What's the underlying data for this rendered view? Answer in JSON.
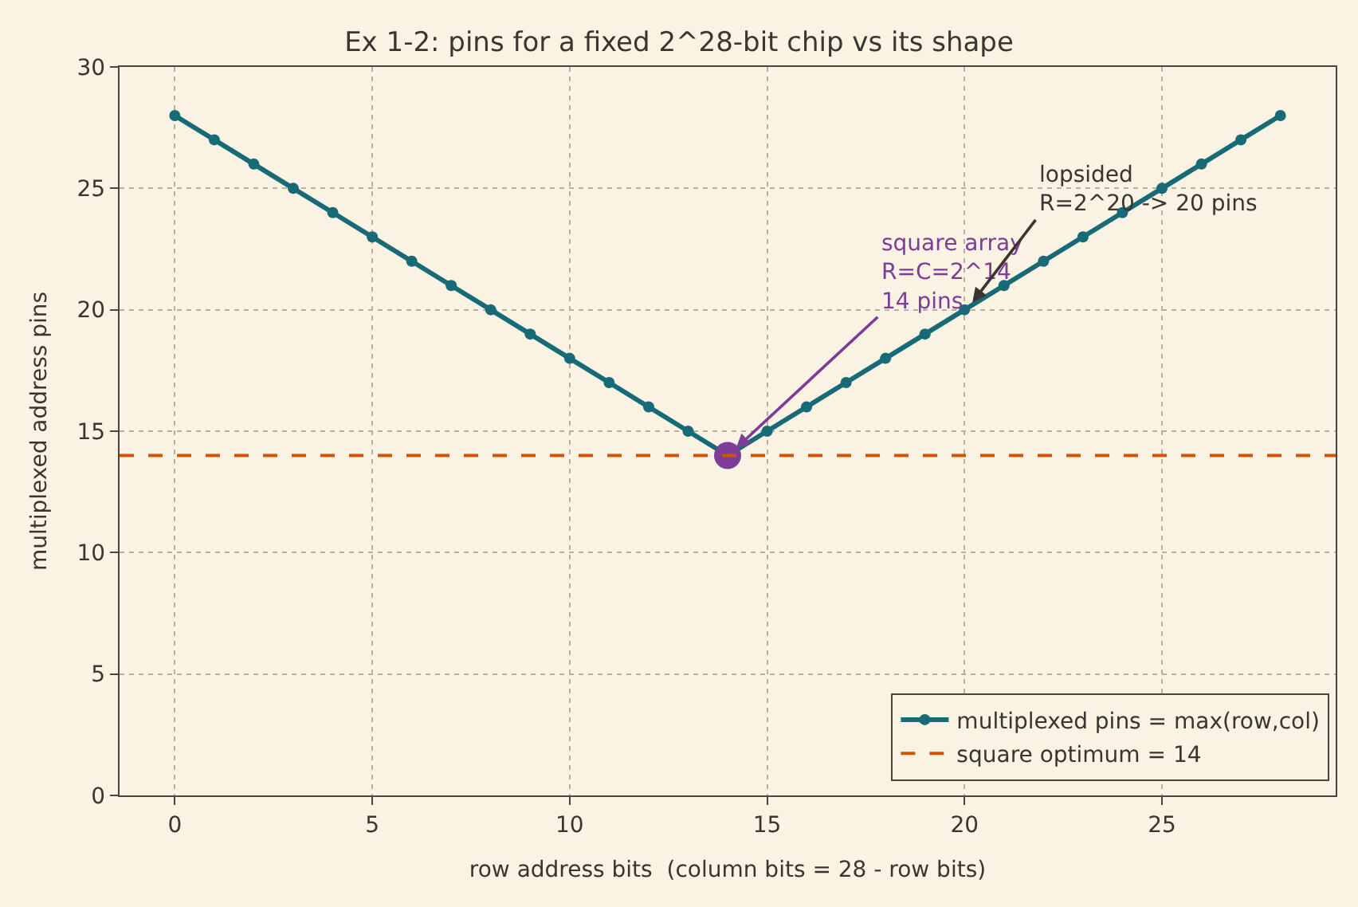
{
  "chart_data": {
    "type": "line",
    "title": "Ex 1-2: pins for a fixed 2^28-bit chip vs its shape",
    "xlabel": "row address bits  (column bits = 28 - row bits)",
    "ylabel": "multiplexed address pins",
    "x": [
      0,
      1,
      2,
      3,
      4,
      5,
      6,
      7,
      8,
      9,
      10,
      11,
      12,
      13,
      14,
      15,
      16,
      17,
      18,
      19,
      20,
      21,
      22,
      23,
      24,
      25,
      26,
      27,
      28
    ],
    "series": [
      {
        "name": "multiplexed pins = max(row,col)",
        "color": "#176b77",
        "values": [
          28,
          27,
          26,
          25,
          24,
          23,
          22,
          21,
          20,
          19,
          18,
          17,
          16,
          15,
          14,
          15,
          16,
          17,
          18,
          19,
          20,
          21,
          22,
          23,
          24,
          25,
          26,
          27,
          28
        ],
        "marker": "circle"
      },
      {
        "type": "scatter",
        "color": "#7d3c98",
        "x": [
          14
        ],
        "values": [
          14
        ],
        "marker": "circle"
      }
    ],
    "ref_lines": [
      {
        "axis": "y",
        "value": 14,
        "label": "square optimum = 14",
        "color": "#d35400",
        "line_style": "dashed"
      }
    ],
    "annotations": [
      {
        "text": "square array\nR=C=2^14\n14 pins",
        "x": 14,
        "y": 14
      },
      {
        "text": "lopsided\nR=2^20 -> 20 pins",
        "x": 20,
        "y": 20
      }
    ],
    "xlim": [
      -1.4,
      29.4
    ],
    "ylim": [
      0,
      30
    ],
    "xticks": [
      0,
      5,
      10,
      15,
      20,
      25
    ],
    "yticks": [
      0,
      5,
      10,
      15,
      20,
      25,
      30
    ],
    "grid": true,
    "legend": "bottom right"
  }
}
